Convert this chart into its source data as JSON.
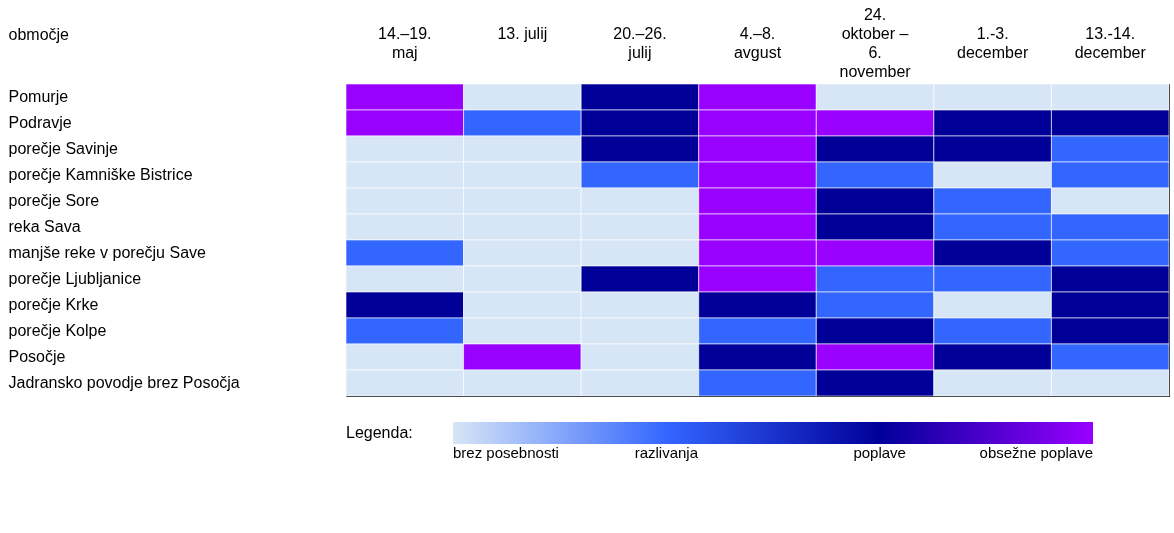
{
  "chart_data": {
    "type": "heatmap",
    "ylabel": "območje",
    "clabel": "Legenda:",
    "categories": [
      "14.–19.\nmaj",
      "13. julij",
      "20.–26.\njulij",
      "4.–8.\navgust",
      "24.\noktober –\n6.\nnovember",
      "1.-3.\ndecember",
      "13.-14.\ndecember"
    ],
    "y_categories": [
      "Pomurje",
      "Podravje",
      "porečje Savinje",
      "porečje Kamniške Bistrice",
      "porečje Sore",
      "reka Sava",
      "manjše reke v porečju Save",
      "porečje Ljubljanice",
      "porečje Krke",
      "porečje Kolpe",
      "Posočje",
      "Jadransko povodje brez Posočja"
    ],
    "cells": [
      [
        3,
        0,
        2,
        3,
        0,
        0,
        0
      ],
      [
        3,
        1,
        2,
        3,
        3,
        2,
        2
      ],
      [
        0,
        0,
        2,
        3,
        2,
        2,
        1
      ],
      [
        0,
        0,
        1,
        3,
        1,
        0,
        1
      ],
      [
        0,
        0,
        0,
        3,
        2,
        1,
        0
      ],
      [
        0,
        0,
        0,
        3,
        2,
        1,
        1
      ],
      [
        1,
        0,
        0,
        3,
        3,
        2,
        1
      ],
      [
        0,
        0,
        2,
        3,
        1,
        1,
        2
      ],
      [
        2,
        0,
        0,
        2,
        1,
        0,
        2
      ],
      [
        1,
        0,
        0,
        1,
        2,
        1,
        2
      ],
      [
        0,
        3,
        0,
        2,
        3,
        2,
        1
      ],
      [
        0,
        0,
        0,
        1,
        2,
        0,
        0
      ]
    ],
    "clim": [
      0,
      3
    ],
    "cticks": [
      {
        "value": 0,
        "label": "brez posebnosti"
      },
      {
        "value": 1,
        "label": "razlivanja"
      },
      {
        "value": 2,
        "label": "poplave"
      },
      {
        "value": 3,
        "label": "obsežne poplave"
      }
    ],
    "colors": [
      "#d7e6f6",
      "#3366ff",
      "#000099",
      "#9900ff"
    ]
  }
}
